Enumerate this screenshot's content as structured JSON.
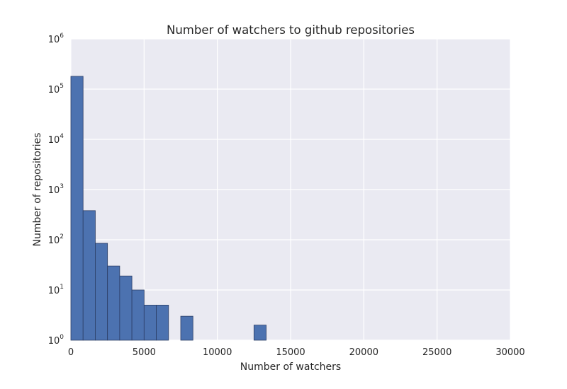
{
  "chart_data": {
    "type": "bar",
    "title": "Number of watchers to github repositories",
    "xlabel": "Number of watchers",
    "ylabel": "Number of repositories",
    "yscale": "log",
    "grid": true,
    "xlim": [
      0,
      30000
    ],
    "ylim": [
      1,
      1000000
    ],
    "x_ticks": [
      "0",
      "5000",
      "10000",
      "15000",
      "20000",
      "25000",
      "30000"
    ],
    "y_ticks": [
      {
        "base": "10",
        "exp": "0"
      },
      {
        "base": "10",
        "exp": "1"
      },
      {
        "base": "10",
        "exp": "2"
      },
      {
        "base": "10",
        "exp": "3"
      },
      {
        "base": "10",
        "exp": "4"
      },
      {
        "base": "10",
        "exp": "5"
      },
      {
        "base": "10",
        "exp": "6"
      }
    ],
    "bins": [
      {
        "x0": 0,
        "x1": 833,
        "count": 180000
      },
      {
        "x0": 833,
        "x1": 1667,
        "count": 380
      },
      {
        "x0": 1667,
        "x1": 2500,
        "count": 85
      },
      {
        "x0": 2500,
        "x1": 3333,
        "count": 30
      },
      {
        "x0": 3333,
        "x1": 4167,
        "count": 19
      },
      {
        "x0": 4167,
        "x1": 5000,
        "count": 10
      },
      {
        "x0": 5000,
        "x1": 5833,
        "count": 5
      },
      {
        "x0": 5833,
        "x1": 6667,
        "count": 5
      },
      {
        "x0": 6667,
        "x1": 7500,
        "count": 1
      },
      {
        "x0": 7500,
        "x1": 8333,
        "count": 3
      },
      {
        "x0": 10833,
        "x1": 11667,
        "count": 1
      },
      {
        "x0": 12500,
        "x1": 13333,
        "count": 2
      },
      {
        "x0": 13333,
        "x1": 14167,
        "count": 1
      },
      {
        "x0": 24167,
        "x1": 25000,
        "count": 1
      }
    ],
    "colors": {
      "bar": "#4c72b0",
      "bar_edge": "#2c3e66",
      "plot_background": "#eaeaf2",
      "grid": "#ffffff"
    }
  }
}
